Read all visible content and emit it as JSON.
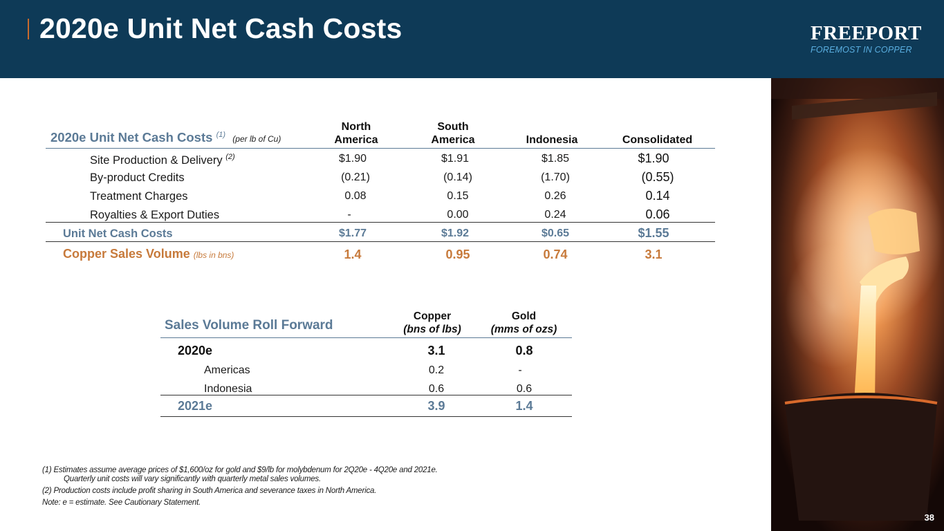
{
  "header": {
    "title": "2020e Unit Net Cash Costs",
    "logo_name": "FREEPORT",
    "logo_tagline": "FOREMOST IN COPPER",
    "bg_color": "#0e3a57"
  },
  "cost_table": {
    "title": "2020e Unit Net Cash Costs",
    "title_sup": "(1)",
    "title_note": "(per lb of Cu)",
    "columns": [
      {
        "line1": "North",
        "line2": "America"
      },
      {
        "line1": "South",
        "line2": "America"
      },
      {
        "line1": "",
        "line2": "Indonesia"
      },
      {
        "line1": "",
        "line2": "Consolidated"
      }
    ],
    "rows": [
      {
        "label": "Site Production & Delivery",
        "sup": "(2)",
        "values": [
          "$1.90",
          "$1.91",
          "$1.85",
          "$1.90"
        ]
      },
      {
        "label": "By-product Credits",
        "sup": "",
        "values": [
          "(0.21)",
          "(0.14)",
          "(1.70)",
          "(0.55)"
        ]
      },
      {
        "label": "Treatment Charges",
        "sup": "",
        "values": [
          "0.08",
          "0.15",
          "0.26",
          "0.14"
        ]
      },
      {
        "label": "Royalties & Export Duties",
        "sup": "",
        "values": [
          "-",
          "0.00",
          "0.24",
          "0.06"
        ]
      }
    ],
    "total": {
      "label": "Unit Net Cash Costs",
      "values": [
        "$1.77",
        "$1.92",
        "$0.65",
        "$1.55"
      ]
    },
    "copper": {
      "label": "Copper Sales Volume",
      "note": "(lbs in bns)",
      "values": [
        "1.4",
        "0.95",
        "0.74",
        "3.1"
      ]
    }
  },
  "roll_table": {
    "title": "Sales Volume Roll Forward",
    "columns": [
      {
        "line1": "Copper",
        "line2": "(bns of lbs)"
      },
      {
        "line1": "Gold",
        "line2": "(mms of ozs)"
      }
    ],
    "year_row": {
      "label": "2020e",
      "values": [
        "3.1",
        "0.8"
      ]
    },
    "sub_rows": [
      {
        "label": "Americas",
        "values": [
          "0.2",
          "-"
        ]
      },
      {
        "label": "Indonesia",
        "values": [
          "0.6",
          "0.6"
        ]
      }
    ],
    "total_row": {
      "label": "2021e",
      "values": [
        "3.9",
        "1.4"
      ]
    }
  },
  "footnotes": {
    "note1_line1": "(1) Estimates assume average prices of $1,600/oz for gold and $9/lb for molybdenum for 2Q20e - 4Q20e and 2021e.",
    "note1_line2": "Quarterly unit costs will vary significantly with quarterly metal sales volumes.",
    "note2": "(2) Production costs include profit sharing in South America and severance taxes in North America.",
    "note3": "Note: e = estimate. See Cautionary Statement."
  },
  "page_number": "38",
  "colors": {
    "navy": "#0e3a57",
    "slate_blue": "#5b7a96",
    "copper_orange": "#c77a3b"
  }
}
